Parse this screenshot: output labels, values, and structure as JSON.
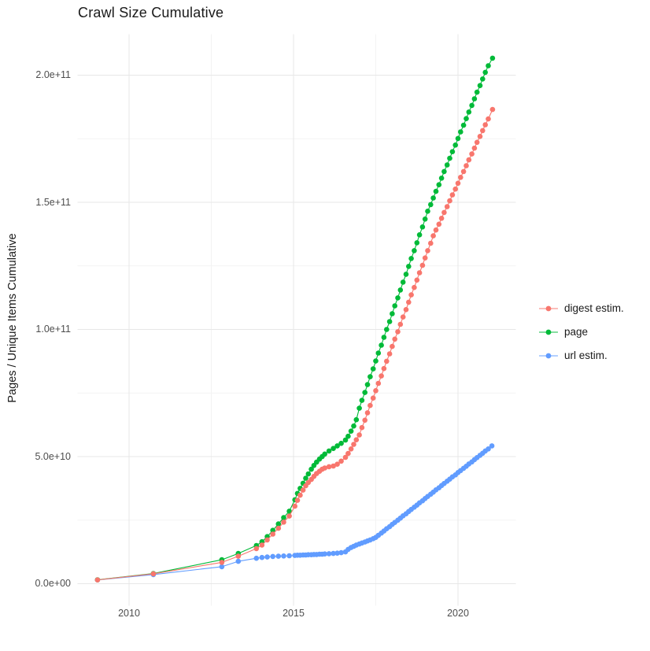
{
  "title": "Crawl Size Cumulative",
  "colors": {
    "digest": "#F8766D",
    "page": "#00BA38",
    "url": "#619CFF",
    "grid_major": "#E7E7E7",
    "grid_minor": "#F3F3F3",
    "tick_text": "#4d4d4d",
    "title_text": "#1a1a1a"
  },
  "chart_data": {
    "type": "line",
    "title": "Crawl Size Cumulative",
    "xlabel": "",
    "ylabel": "Pages / Unique Items Cumulative",
    "grid": true,
    "legend_position": "right",
    "x_axis": {
      "ticks": [
        2010,
        2015,
        2020
      ],
      "tick_labels": [
        "2010",
        "2015",
        "2020"
      ],
      "minor_ticks": [
        2012.5,
        2017.5
      ],
      "range": [
        2008.44,
        2021.68
      ]
    },
    "y_axis": {
      "label": "Pages / Unique Items Cumulative",
      "ticks": [
        0,
        50000000000.0,
        100000000000.0,
        150000000000.0,
        200000000000.0
      ],
      "tick_labels": [
        "0.0e+00",
        "5.0e+10",
        "1.0e+11",
        "1.5e+11",
        "2.0e+11"
      ],
      "minor_ticks": [
        25000000000.0,
        75000000000.0,
        125000000000.0,
        175000000000.0
      ],
      "range": [
        -9000000000.0,
        216000000000.0
      ]
    },
    "series": [
      {
        "name": "digest estim.",
        "color": "#F8766D",
        "z": 3,
        "points": [
          [
            2009.04,
            1500000000.0
          ],
          [
            2010.74,
            3900000000.0
          ],
          [
            2012.82,
            8400000000.0
          ],
          [
            2013.32,
            10800000000.0
          ],
          [
            2013.87,
            13800000000.0
          ],
          [
            2014.04,
            15200000000.0
          ],
          [
            2014.2,
            17200000000.0
          ],
          [
            2014.37,
            19500000000.0
          ],
          [
            2014.54,
            21800000000.0
          ],
          [
            2014.7,
            24200000000.0
          ],
          [
            2014.87,
            26600000000.0
          ],
          [
            2015.04,
            30500000000.0
          ],
          [
            2015.12,
            32800000000.0
          ],
          [
            2015.2,
            34800000000.0
          ],
          [
            2015.29,
            36800000000.0
          ],
          [
            2015.37,
            38500000000.0
          ],
          [
            2015.45,
            39800000000.0
          ],
          [
            2015.54,
            41000000000.0
          ],
          [
            2015.62,
            42200000000.0
          ],
          [
            2015.7,
            43300000000.0
          ],
          [
            2015.79,
            44200000000.0
          ],
          [
            2015.87,
            45000000000.0
          ],
          [
            2015.95,
            45500000000.0
          ],
          [
            2016.08,
            46000000000.0
          ],
          [
            2016.21,
            46300000000.0
          ],
          [
            2016.33,
            47000000000.0
          ],
          [
            2016.45,
            48200000000.0
          ],
          [
            2016.58,
            49700000000.0
          ],
          [
            2016.66,
            51200000000.0
          ],
          [
            2016.75,
            53000000000.0
          ],
          [
            2016.83,
            54800000000.0
          ],
          [
            2016.91,
            56600000000.0
          ],
          [
            2017.0,
            58500000000.0
          ],
          [
            2017.08,
            61400000000.0
          ],
          [
            2017.17,
            64300000000.0
          ],
          [
            2017.25,
            67200000000.0
          ],
          [
            2017.33,
            70100000000.0
          ],
          [
            2017.42,
            73000000000.0
          ],
          [
            2017.5,
            75900000000.0
          ],
          [
            2017.58,
            78800000000.0
          ],
          [
            2017.67,
            81700000000.0
          ],
          [
            2017.75,
            84600000000.0
          ],
          [
            2017.83,
            87500000000.0
          ],
          [
            2017.92,
            90400000000.0
          ],
          [
            2018.0,
            93300000000.0
          ],
          [
            2018.08,
            96200000000.0
          ],
          [
            2018.17,
            99100000000.0
          ],
          [
            2018.25,
            102000000000.0
          ],
          [
            2018.33,
            104900000000.0
          ],
          [
            2018.42,
            107800000000.0
          ],
          [
            2018.5,
            110700000000.0
          ],
          [
            2018.58,
            113600000000.0
          ],
          [
            2018.67,
            116500000000.0
          ],
          [
            2018.75,
            119400000000.0
          ],
          [
            2018.83,
            122300000000.0
          ],
          [
            2018.92,
            125200000000.0
          ],
          [
            2019.0,
            128100000000.0
          ],
          [
            2019.08,
            131000000000.0
          ],
          [
            2019.17,
            133900000000.0
          ],
          [
            2019.25,
            136800000000.0
          ],
          [
            2019.33,
            139100000000.0
          ],
          [
            2019.42,
            141400000000.0
          ],
          [
            2019.5,
            143700000000.0
          ],
          [
            2019.58,
            146000000000.0
          ],
          [
            2019.67,
            148300000000.0
          ],
          [
            2019.75,
            150600000000.0
          ],
          [
            2019.83,
            152900000000.0
          ],
          [
            2019.92,
            155200000000.0
          ],
          [
            2020.0,
            157500000000.0
          ],
          [
            2020.08,
            159800000000.0
          ],
          [
            2020.17,
            162100000000.0
          ],
          [
            2020.25,
            164400000000.0
          ],
          [
            2020.33,
            166700000000.0
          ],
          [
            2020.42,
            169000000000.0
          ],
          [
            2020.5,
            171300000000.0
          ],
          [
            2020.58,
            173600000000.0
          ],
          [
            2020.67,
            175900000000.0
          ],
          [
            2020.75,
            178200000000.0
          ],
          [
            2020.83,
            180500000000.0
          ],
          [
            2020.92,
            182800000000.0
          ],
          [
            2021.05,
            186500000000.0
          ]
        ]
      },
      {
        "name": "page",
        "color": "#00BA38",
        "z": 2,
        "points": [
          [
            2009.04,
            1550000000.0
          ],
          [
            2010.74,
            4000000000.0
          ],
          [
            2012.82,
            9400000000.0
          ],
          [
            2013.32,
            11900000000.0
          ],
          [
            2013.87,
            15000000000.0
          ],
          [
            2014.04,
            16500000000.0
          ],
          [
            2014.2,
            18500000000.0
          ],
          [
            2014.37,
            21000000000.0
          ],
          [
            2014.54,
            23500000000.0
          ],
          [
            2014.7,
            26000000000.0
          ],
          [
            2014.87,
            28500000000.0
          ],
          [
            2015.04,
            33000000000.0
          ],
          [
            2015.12,
            35500000000.0
          ],
          [
            2015.2,
            37500000000.0
          ],
          [
            2015.29,
            39500000000.0
          ],
          [
            2015.37,
            41500000000.0
          ],
          [
            2015.45,
            43200000000.0
          ],
          [
            2015.54,
            45000000000.0
          ],
          [
            2015.62,
            46500000000.0
          ],
          [
            2015.7,
            47800000000.0
          ],
          [
            2015.79,
            49000000000.0
          ],
          [
            2015.87,
            50000000000.0
          ],
          [
            2015.95,
            51000000000.0
          ],
          [
            2016.08,
            52200000000.0
          ],
          [
            2016.21,
            53200000000.0
          ],
          [
            2016.33,
            54200000000.0
          ],
          [
            2016.45,
            55200000000.0
          ],
          [
            2016.58,
            56500000000.0
          ],
          [
            2016.66,
            58000000000.0
          ],
          [
            2016.75,
            60000000000.0
          ],
          [
            2016.83,
            62000000000.0
          ],
          [
            2016.91,
            64500000000.0
          ],
          [
            2017.0,
            69000000000.0
          ],
          [
            2017.08,
            72100000000.0
          ],
          [
            2017.17,
            75200000000.0
          ],
          [
            2017.25,
            78300000000.0
          ],
          [
            2017.33,
            81400000000.0
          ],
          [
            2017.42,
            84500000000.0
          ],
          [
            2017.5,
            87600000000.0
          ],
          [
            2017.58,
            90700000000.0
          ],
          [
            2017.67,
            93800000000.0
          ],
          [
            2017.75,
            96900000000.0
          ],
          [
            2017.83,
            100000000000.0
          ],
          [
            2017.92,
            103100000000.0
          ],
          [
            2018.0,
            106200000000.0
          ],
          [
            2018.08,
            109300000000.0
          ],
          [
            2018.17,
            112400000000.0
          ],
          [
            2018.25,
            115500000000.0
          ],
          [
            2018.33,
            118600000000.0
          ],
          [
            2018.42,
            121700000000.0
          ],
          [
            2018.5,
            124800000000.0
          ],
          [
            2018.58,
            127900000000.0
          ],
          [
            2018.67,
            131000000000.0
          ],
          [
            2018.75,
            134100000000.0
          ],
          [
            2018.83,
            137200000000.0
          ],
          [
            2018.92,
            140300000000.0
          ],
          [
            2019.0,
            143400000000.0
          ],
          [
            2019.08,
            146500000000.0
          ],
          [
            2019.17,
            149100000000.0
          ],
          [
            2019.25,
            151700000000.0
          ],
          [
            2019.33,
            154300000000.0
          ],
          [
            2019.42,
            156900000000.0
          ],
          [
            2019.5,
            159500000000.0
          ],
          [
            2019.58,
            162100000000.0
          ],
          [
            2019.67,
            164700000000.0
          ],
          [
            2019.75,
            167300000000.0
          ],
          [
            2019.83,
            169900000000.0
          ],
          [
            2019.92,
            172500000000.0
          ],
          [
            2020.0,
            175100000000.0
          ],
          [
            2020.08,
            177700000000.0
          ],
          [
            2020.17,
            180300000000.0
          ],
          [
            2020.25,
            182900000000.0
          ],
          [
            2020.33,
            185500000000.0
          ],
          [
            2020.42,
            188100000000.0
          ],
          [
            2020.5,
            190700000000.0
          ],
          [
            2020.58,
            193300000000.0
          ],
          [
            2020.67,
            195900000000.0
          ],
          [
            2020.75,
            198500000000.0
          ],
          [
            2020.83,
            201100000000.0
          ],
          [
            2020.92,
            203700000000.0
          ],
          [
            2021.05,
            206700000000.0
          ]
        ]
      },
      {
        "name": "url estim.",
        "color": "#619CFF",
        "z": 1,
        "points": [
          [
            2009.04,
            1500000000.0
          ],
          [
            2010.74,
            3600000000.0
          ],
          [
            2012.82,
            6700000000.0
          ],
          [
            2013.32,
            8800000000.0
          ],
          [
            2013.87,
            10000000000.0
          ],
          [
            2014.04,
            10300000000.0
          ],
          [
            2014.2,
            10500000000.0
          ],
          [
            2014.37,
            10700000000.0
          ],
          [
            2014.54,
            10800000000.0
          ],
          [
            2014.7,
            10900000000.0
          ],
          [
            2014.87,
            11000000000.0
          ],
          [
            2015.04,
            11100000000.0
          ],
          [
            2015.12,
            11200000000.0
          ],
          [
            2015.2,
            11200000000.0
          ],
          [
            2015.29,
            11300000000.0
          ],
          [
            2015.37,
            11300000000.0
          ],
          [
            2015.45,
            11400000000.0
          ],
          [
            2015.54,
            11400000000.0
          ],
          [
            2015.62,
            11500000000.0
          ],
          [
            2015.7,
            11500000000.0
          ],
          [
            2015.79,
            11600000000.0
          ],
          [
            2015.87,
            11600000000.0
          ],
          [
            2015.95,
            11700000000.0
          ],
          [
            2016.08,
            11800000000.0
          ],
          [
            2016.21,
            11900000000.0
          ],
          [
            2016.33,
            12000000000.0
          ],
          [
            2016.45,
            12200000000.0
          ],
          [
            2016.58,
            12500000000.0
          ],
          [
            2016.66,
            13500000000.0
          ],
          [
            2016.75,
            14200000000.0
          ],
          [
            2016.83,
            14700000000.0
          ],
          [
            2016.91,
            15200000000.0
          ],
          [
            2017.0,
            15600000000.0
          ],
          [
            2017.08,
            16000000000.0
          ],
          [
            2017.17,
            16400000000.0
          ],
          [
            2017.25,
            16800000000.0
          ],
          [
            2017.33,
            17200000000.0
          ],
          [
            2017.42,
            17700000000.0
          ],
          [
            2017.5,
            18200000000.0
          ],
          [
            2017.58,
            19000000000.0
          ],
          [
            2017.67,
            19900000000.0
          ],
          [
            2017.75,
            20700000000.0
          ],
          [
            2017.83,
            21600000000.0
          ],
          [
            2017.92,
            22400000000.0
          ],
          [
            2018.0,
            23300000000.0
          ],
          [
            2018.08,
            24100000000.0
          ],
          [
            2018.17,
            25000000000.0
          ],
          [
            2018.25,
            25800000000.0
          ],
          [
            2018.33,
            26700000000.0
          ],
          [
            2018.42,
            27500000000.0
          ],
          [
            2018.5,
            28400000000.0
          ],
          [
            2018.58,
            29200000000.0
          ],
          [
            2018.67,
            30100000000.0
          ],
          [
            2018.75,
            30900000000.0
          ],
          [
            2018.83,
            31800000000.0
          ],
          [
            2018.92,
            32600000000.0
          ],
          [
            2019.0,
            33500000000.0
          ],
          [
            2019.08,
            34300000000.0
          ],
          [
            2019.17,
            35200000000.0
          ],
          [
            2019.25,
            36000000000.0
          ],
          [
            2019.33,
            36900000000.0
          ],
          [
            2019.42,
            37700000000.0
          ],
          [
            2019.5,
            38600000000.0
          ],
          [
            2019.58,
            39400000000.0
          ],
          [
            2019.67,
            40300000000.0
          ],
          [
            2019.75,
            41100000000.0
          ],
          [
            2019.83,
            42000000000.0
          ],
          [
            2019.92,
            42800000000.0
          ],
          [
            2020.0,
            43700000000.0
          ],
          [
            2020.08,
            44500000000.0
          ],
          [
            2020.17,
            45400000000.0
          ],
          [
            2020.25,
            46200000000.0
          ],
          [
            2020.33,
            47100000000.0
          ],
          [
            2020.42,
            47900000000.0
          ],
          [
            2020.5,
            48800000000.0
          ],
          [
            2020.58,
            49600000000.0
          ],
          [
            2020.67,
            50500000000.0
          ],
          [
            2020.75,
            51300000000.0
          ],
          [
            2020.83,
            52200000000.0
          ],
          [
            2020.92,
            53000000000.0
          ],
          [
            2021.03,
            54200000000.0
          ]
        ]
      }
    ]
  },
  "legend": {
    "items": [
      {
        "label": "digest estim.",
        "color": "#F8766D"
      },
      {
        "label": "page",
        "color": "#00BA38"
      },
      {
        "label": "url estim.",
        "color": "#619CFF"
      }
    ]
  }
}
